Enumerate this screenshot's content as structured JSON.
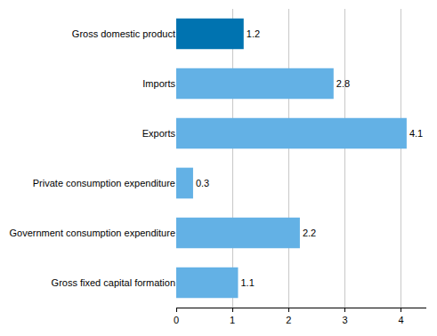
{
  "chart_data": {
    "type": "bar",
    "orientation": "horizontal",
    "categories": [
      "Gross domestic product",
      "Imports",
      "Exports",
      "Private consumption expenditure",
      "Government consumption expenditure",
      "Gross fixed capital formation"
    ],
    "values": [
      1.2,
      2.8,
      4.1,
      0.3,
      2.2,
      1.1
    ],
    "colors": [
      "#0073b0",
      "#63b1e5",
      "#63b1e5",
      "#63b1e5",
      "#63b1e5",
      "#63b1e5"
    ],
    "xlim": [
      0,
      4.45
    ],
    "xticks": [
      0,
      1,
      2,
      3,
      4
    ],
    "grid": true,
    "data_labels": true
  }
}
